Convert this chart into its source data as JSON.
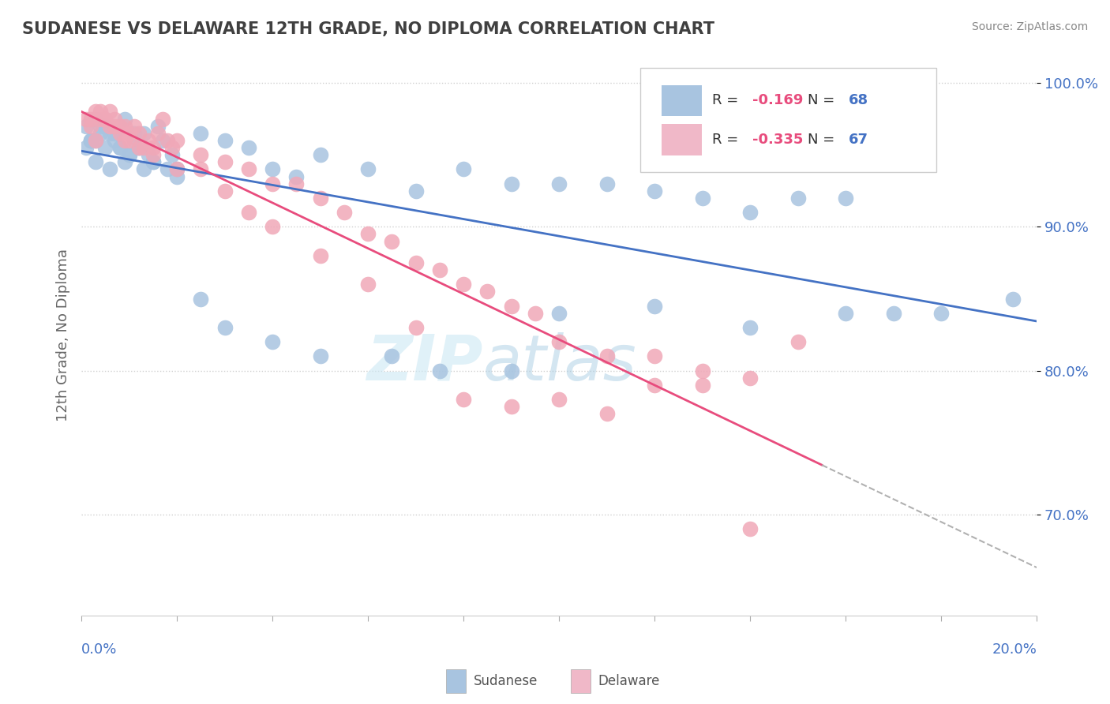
{
  "title": "SUDANESE VS DELAWARE 12TH GRADE, NO DIPLOMA CORRELATION CHART",
  "source": "Source: ZipAtlas.com",
  "ylabel": "12th Grade, No Diploma",
  "watermark_zip": "ZIP",
  "watermark_atlas": "atlas",
  "blue_R": -0.169,
  "blue_N": 68,
  "pink_R": -0.335,
  "pink_N": 67,
  "blue_color": "#a8c4e0",
  "pink_color": "#f0a8b8",
  "blue_line_color": "#4472c4",
  "pink_line_color": "#e84c7d",
  "dashed_line_color": "#b0b0b0",
  "legend_blue_color": "#a8c4e0",
  "legend_pink_color": "#f0b8c8",
  "x_min": 0.0,
  "x_max": 0.2,
  "y_min": 0.63,
  "y_max": 1.02,
  "blue_scatter_x": [
    0.001,
    0.002,
    0.003,
    0.004,
    0.005,
    0.001,
    0.002,
    0.003,
    0.005,
    0.006,
    0.007,
    0.008,
    0.009,
    0.01,
    0.011,
    0.012,
    0.013,
    0.014,
    0.015,
    0.016,
    0.017,
    0.018,
    0.019,
    0.02,
    0.025,
    0.03,
    0.035,
    0.04,
    0.045,
    0.05,
    0.06,
    0.07,
    0.08,
    0.09,
    0.1,
    0.11,
    0.12,
    0.13,
    0.14,
    0.15,
    0.16,
    0.17,
    0.002,
    0.003,
    0.004,
    0.006,
    0.008,
    0.01,
    0.012,
    0.015,
    0.02,
    0.025,
    0.03,
    0.04,
    0.05,
    0.065,
    0.075,
    0.09,
    0.1,
    0.12,
    0.14,
    0.16,
    0.18,
    0.195,
    0.007,
    0.009,
    0.011,
    0.013
  ],
  "blue_scatter_y": [
    0.97,
    0.96,
    0.975,
    0.965,
    0.97,
    0.955,
    0.96,
    0.945,
    0.955,
    0.94,
    0.96,
    0.955,
    0.945,
    0.95,
    0.96,
    0.955,
    0.94,
    0.95,
    0.945,
    0.97,
    0.96,
    0.94,
    0.95,
    0.94,
    0.965,
    0.96,
    0.955,
    0.94,
    0.935,
    0.95,
    0.94,
    0.925,
    0.94,
    0.93,
    0.93,
    0.93,
    0.925,
    0.92,
    0.91,
    0.92,
    0.92,
    0.84,
    0.96,
    0.96,
    0.97,
    0.965,
    0.955,
    0.95,
    0.955,
    0.945,
    0.935,
    0.85,
    0.83,
    0.82,
    0.81,
    0.81,
    0.8,
    0.8,
    0.84,
    0.845,
    0.83,
    0.84,
    0.84,
    0.85,
    0.965,
    0.975,
    0.965,
    0.965
  ],
  "pink_scatter_x": [
    0.001,
    0.002,
    0.003,
    0.004,
    0.005,
    0.006,
    0.007,
    0.008,
    0.009,
    0.01,
    0.011,
    0.012,
    0.013,
    0.014,
    0.015,
    0.016,
    0.017,
    0.018,
    0.019,
    0.02,
    0.025,
    0.03,
    0.035,
    0.04,
    0.045,
    0.05,
    0.055,
    0.06,
    0.065,
    0.07,
    0.075,
    0.08,
    0.085,
    0.09,
    0.095,
    0.1,
    0.11,
    0.12,
    0.13,
    0.14,
    0.15,
    0.002,
    0.004,
    0.006,
    0.008,
    0.01,
    0.012,
    0.015,
    0.02,
    0.025,
    0.03,
    0.035,
    0.04,
    0.05,
    0.06,
    0.07,
    0.08,
    0.09,
    0.1,
    0.11,
    0.12,
    0.13,
    0.14,
    0.003,
    0.005,
    0.007,
    0.009
  ],
  "pink_scatter_y": [
    0.975,
    0.97,
    0.96,
    0.98,
    0.975,
    0.97,
    0.97,
    0.965,
    0.96,
    0.965,
    0.97,
    0.965,
    0.955,
    0.96,
    0.955,
    0.965,
    0.975,
    0.96,
    0.955,
    0.96,
    0.95,
    0.945,
    0.94,
    0.93,
    0.93,
    0.92,
    0.91,
    0.895,
    0.89,
    0.875,
    0.87,
    0.86,
    0.855,
    0.845,
    0.84,
    0.82,
    0.81,
    0.81,
    0.8,
    0.795,
    0.82,
    0.975,
    0.975,
    0.98,
    0.97,
    0.96,
    0.955,
    0.95,
    0.94,
    0.94,
    0.925,
    0.91,
    0.9,
    0.88,
    0.86,
    0.83,
    0.78,
    0.775,
    0.78,
    0.77,
    0.79,
    0.79,
    0.69,
    0.98,
    0.975,
    0.975,
    0.97
  ],
  "ytick_labels": [
    "100.0%",
    "90.0%",
    "80.0%",
    "70.0%"
  ],
  "ytick_values": [
    1.0,
    0.9,
    0.8,
    0.7
  ],
  "background_color": "#ffffff",
  "grid_color": "#d0d0d0",
  "title_color": "#404040",
  "axis_label_color": "#4472c4",
  "legend_R_color": "#e84c7d",
  "legend_N_color": "#4472c4",
  "legend_text_color": "#333333"
}
